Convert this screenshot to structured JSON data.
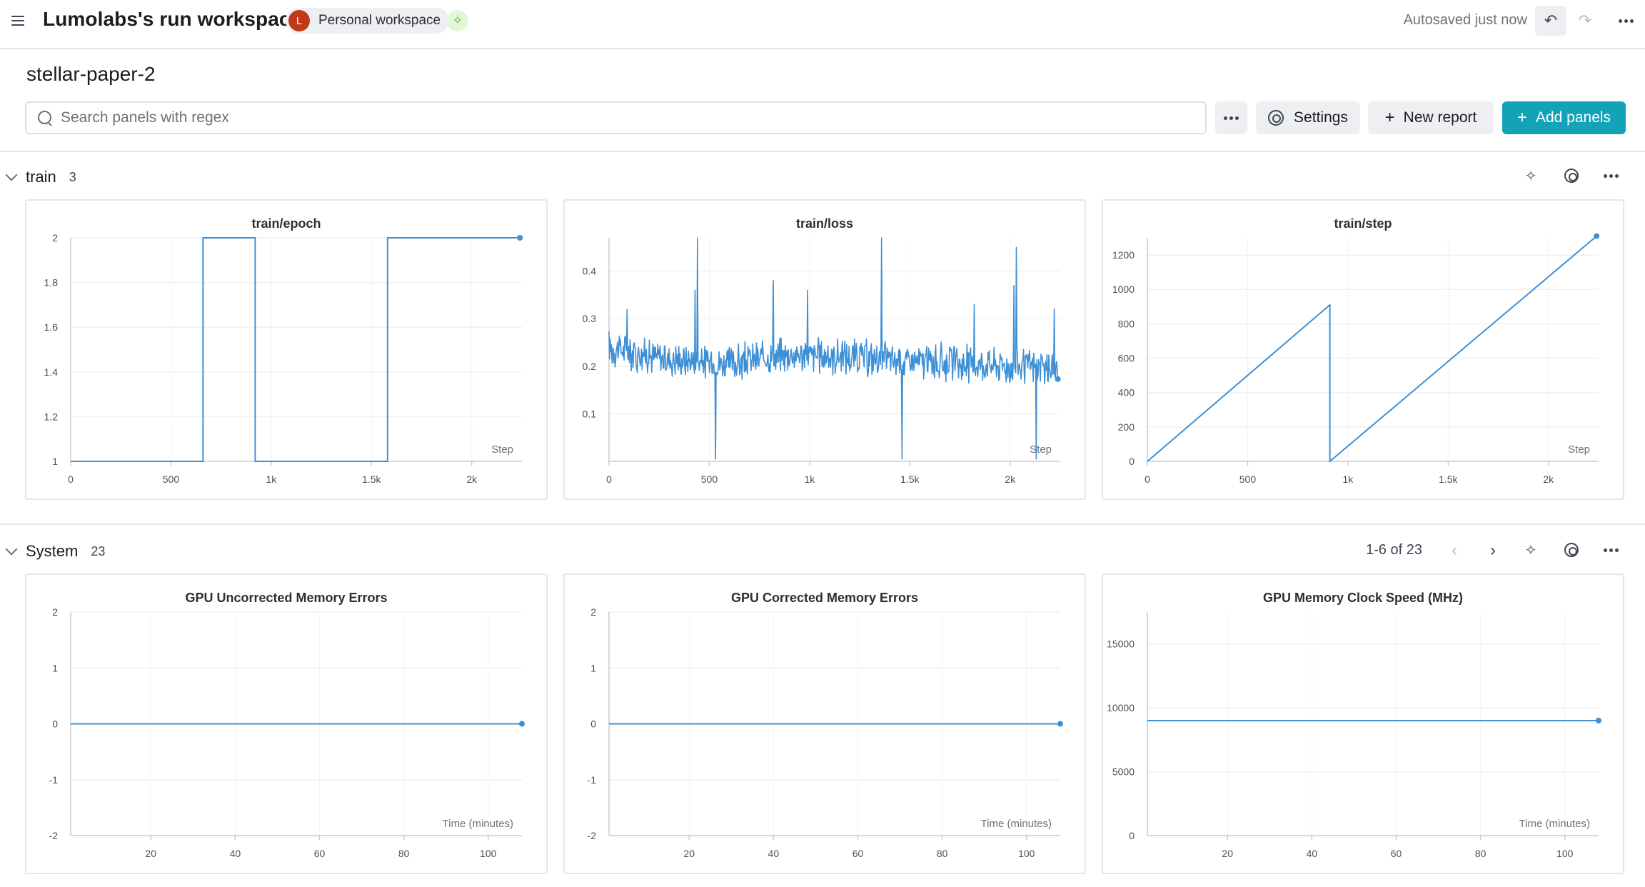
{
  "topbar": {
    "workspace_title": "Lumolabs's run workspace",
    "avatar_initial": "L",
    "workspace_chip": "Personal workspace",
    "autosave_status": "Autosaved just now"
  },
  "run": {
    "name": "stellar-paper-2"
  },
  "toolbar": {
    "search_placeholder": "Search panels with regex",
    "settings_label": "Settings",
    "new_report_label": "New report",
    "add_panels_label": "Add panels"
  },
  "sections": {
    "train": {
      "title": "train",
      "count": "3"
    },
    "system": {
      "title": "System",
      "count": "23",
      "pager": "1-6 of 23"
    }
  },
  "colors": {
    "accent": "#13a3b8",
    "series": "#3d8fd6",
    "avatar": "#c0391b"
  },
  "chart_data": [
    {
      "id": "train-epoch",
      "type": "line",
      "title": "train/epoch",
      "xlabel": "Step",
      "xlim": [
        0,
        2250
      ],
      "ylim": [
        1,
        2
      ],
      "xticks": [
        0,
        500,
        1000,
        1500,
        2000
      ],
      "xtick_labels": [
        "0",
        "500",
        "1k",
        "1.5k",
        "2k"
      ],
      "yticks": [
        1,
        1.2,
        1.4,
        1.6,
        1.8,
        2
      ],
      "ytick_labels": [
        "1",
        "1.2",
        "1.4",
        "1.6",
        "1.8",
        "2"
      ],
      "series": [
        {
          "x": [
            0,
            660,
            660,
            920,
            920,
            1580,
            1580,
            2240
          ],
          "y": [
            1,
            1,
            2,
            2,
            1,
            1,
            2,
            2
          ]
        }
      ],
      "end_marker": true
    },
    {
      "id": "train-loss",
      "type": "line",
      "title": "train/loss",
      "xlabel": "Step",
      "xlim": [
        0,
        2250
      ],
      "ylim": [
        0,
        0.47
      ],
      "xticks": [
        0,
        500,
        1000,
        1500,
        2000
      ],
      "xtick_labels": [
        "0",
        "500",
        "1k",
        "1.5k",
        "2k"
      ],
      "yticks": [
        0.1,
        0.2,
        0.3,
        0.4
      ],
      "ytick_labels": [
        "0.1",
        "0.2",
        "0.3",
        "0.4"
      ],
      "noisy": true,
      "baseline": [
        [
          0,
          0.24
        ],
        [
          300,
          0.215
        ],
        [
          600,
          0.205
        ],
        [
          900,
          0.225
        ],
        [
          1200,
          0.22
        ],
        [
          1500,
          0.21
        ],
        [
          1800,
          0.205
        ],
        [
          2100,
          0.2
        ],
        [
          2240,
          0.19
        ]
      ],
      "noise_amplitude": 0.045,
      "spikes": [
        [
          90,
          0.32
        ],
        [
          430,
          0.36
        ],
        [
          440,
          0.47
        ],
        [
          530,
          0.005
        ],
        [
          820,
          0.38
        ],
        [
          990,
          0.36
        ],
        [
          1360,
          0.47
        ],
        [
          1460,
          0.005
        ],
        [
          1820,
          0.33
        ],
        [
          2020,
          0.37
        ],
        [
          2030,
          0.45
        ],
        [
          2130,
          0.005
        ],
        [
          2220,
          0.32
        ]
      ],
      "end_marker": true
    },
    {
      "id": "train-step",
      "type": "line",
      "title": "train/step",
      "xlabel": "Step",
      "xlim": [
        0,
        2250
      ],
      "ylim": [
        0,
        1300
      ],
      "xticks": [
        0,
        500,
        1000,
        1500,
        2000
      ],
      "xtick_labels": [
        "0",
        "500",
        "1k",
        "1.5k",
        "2k"
      ],
      "yticks": [
        0,
        200,
        400,
        600,
        800,
        1000,
        1200
      ],
      "ytick_labels": [
        "0",
        "200",
        "400",
        "600",
        "800",
        "1000",
        "1200"
      ],
      "series": [
        {
          "x": [
            0,
            910,
            910,
            2240
          ],
          "y": [
            0,
            910,
            0,
            1310
          ]
        }
      ],
      "end_marker": true
    },
    {
      "id": "gpu-uncorrected-memory-errors",
      "type": "line",
      "title": "GPU Uncorrected Memory Errors",
      "xlabel": "Time (minutes)",
      "xlim": [
        1,
        108
      ],
      "ylim": [
        -2,
        2
      ],
      "xticks": [
        20,
        40,
        60,
        80,
        100
      ],
      "xtick_labels": [
        "20",
        "40",
        "60",
        "80",
        "100"
      ],
      "yticks": [
        -2,
        -1,
        0,
        1,
        2
      ],
      "ytick_labels": [
        "-2",
        "-1",
        "0",
        "1",
        "2"
      ],
      "series": [
        {
          "x": [
            1,
            108
          ],
          "y": [
            0,
            0
          ]
        }
      ],
      "end_marker": true
    },
    {
      "id": "gpu-corrected-memory-errors",
      "type": "line",
      "title": "GPU Corrected Memory Errors",
      "xlabel": "Time (minutes)",
      "xlim": [
        1,
        108
      ],
      "ylim": [
        -2,
        2
      ],
      "xticks": [
        20,
        40,
        60,
        80,
        100
      ],
      "xtick_labels": [
        "20",
        "40",
        "60",
        "80",
        "100"
      ],
      "yticks": [
        -2,
        -1,
        0,
        1,
        2
      ],
      "ytick_labels": [
        "-2",
        "-1",
        "0",
        "1",
        "2"
      ],
      "series": [
        {
          "x": [
            1,
            108
          ],
          "y": [
            0,
            0
          ]
        }
      ],
      "end_marker": true
    },
    {
      "id": "gpu-memory-clock-speed",
      "type": "line",
      "title": "GPU Memory Clock Speed (MHz)",
      "xlabel": "Time (minutes)",
      "xlim": [
        1,
        108
      ],
      "ylim": [
        0,
        17500
      ],
      "xticks": [
        20,
        40,
        60,
        80,
        100
      ],
      "xtick_labels": [
        "20",
        "40",
        "60",
        "80",
        "100"
      ],
      "yticks": [
        0,
        5000,
        10000,
        15000
      ],
      "ytick_labels": [
        "0",
        "5000",
        "10000",
        "15000"
      ],
      "series": [
        {
          "x": [
            1,
            108
          ],
          "y": [
            9001,
            9001
          ]
        }
      ],
      "end_marker": true
    }
  ]
}
